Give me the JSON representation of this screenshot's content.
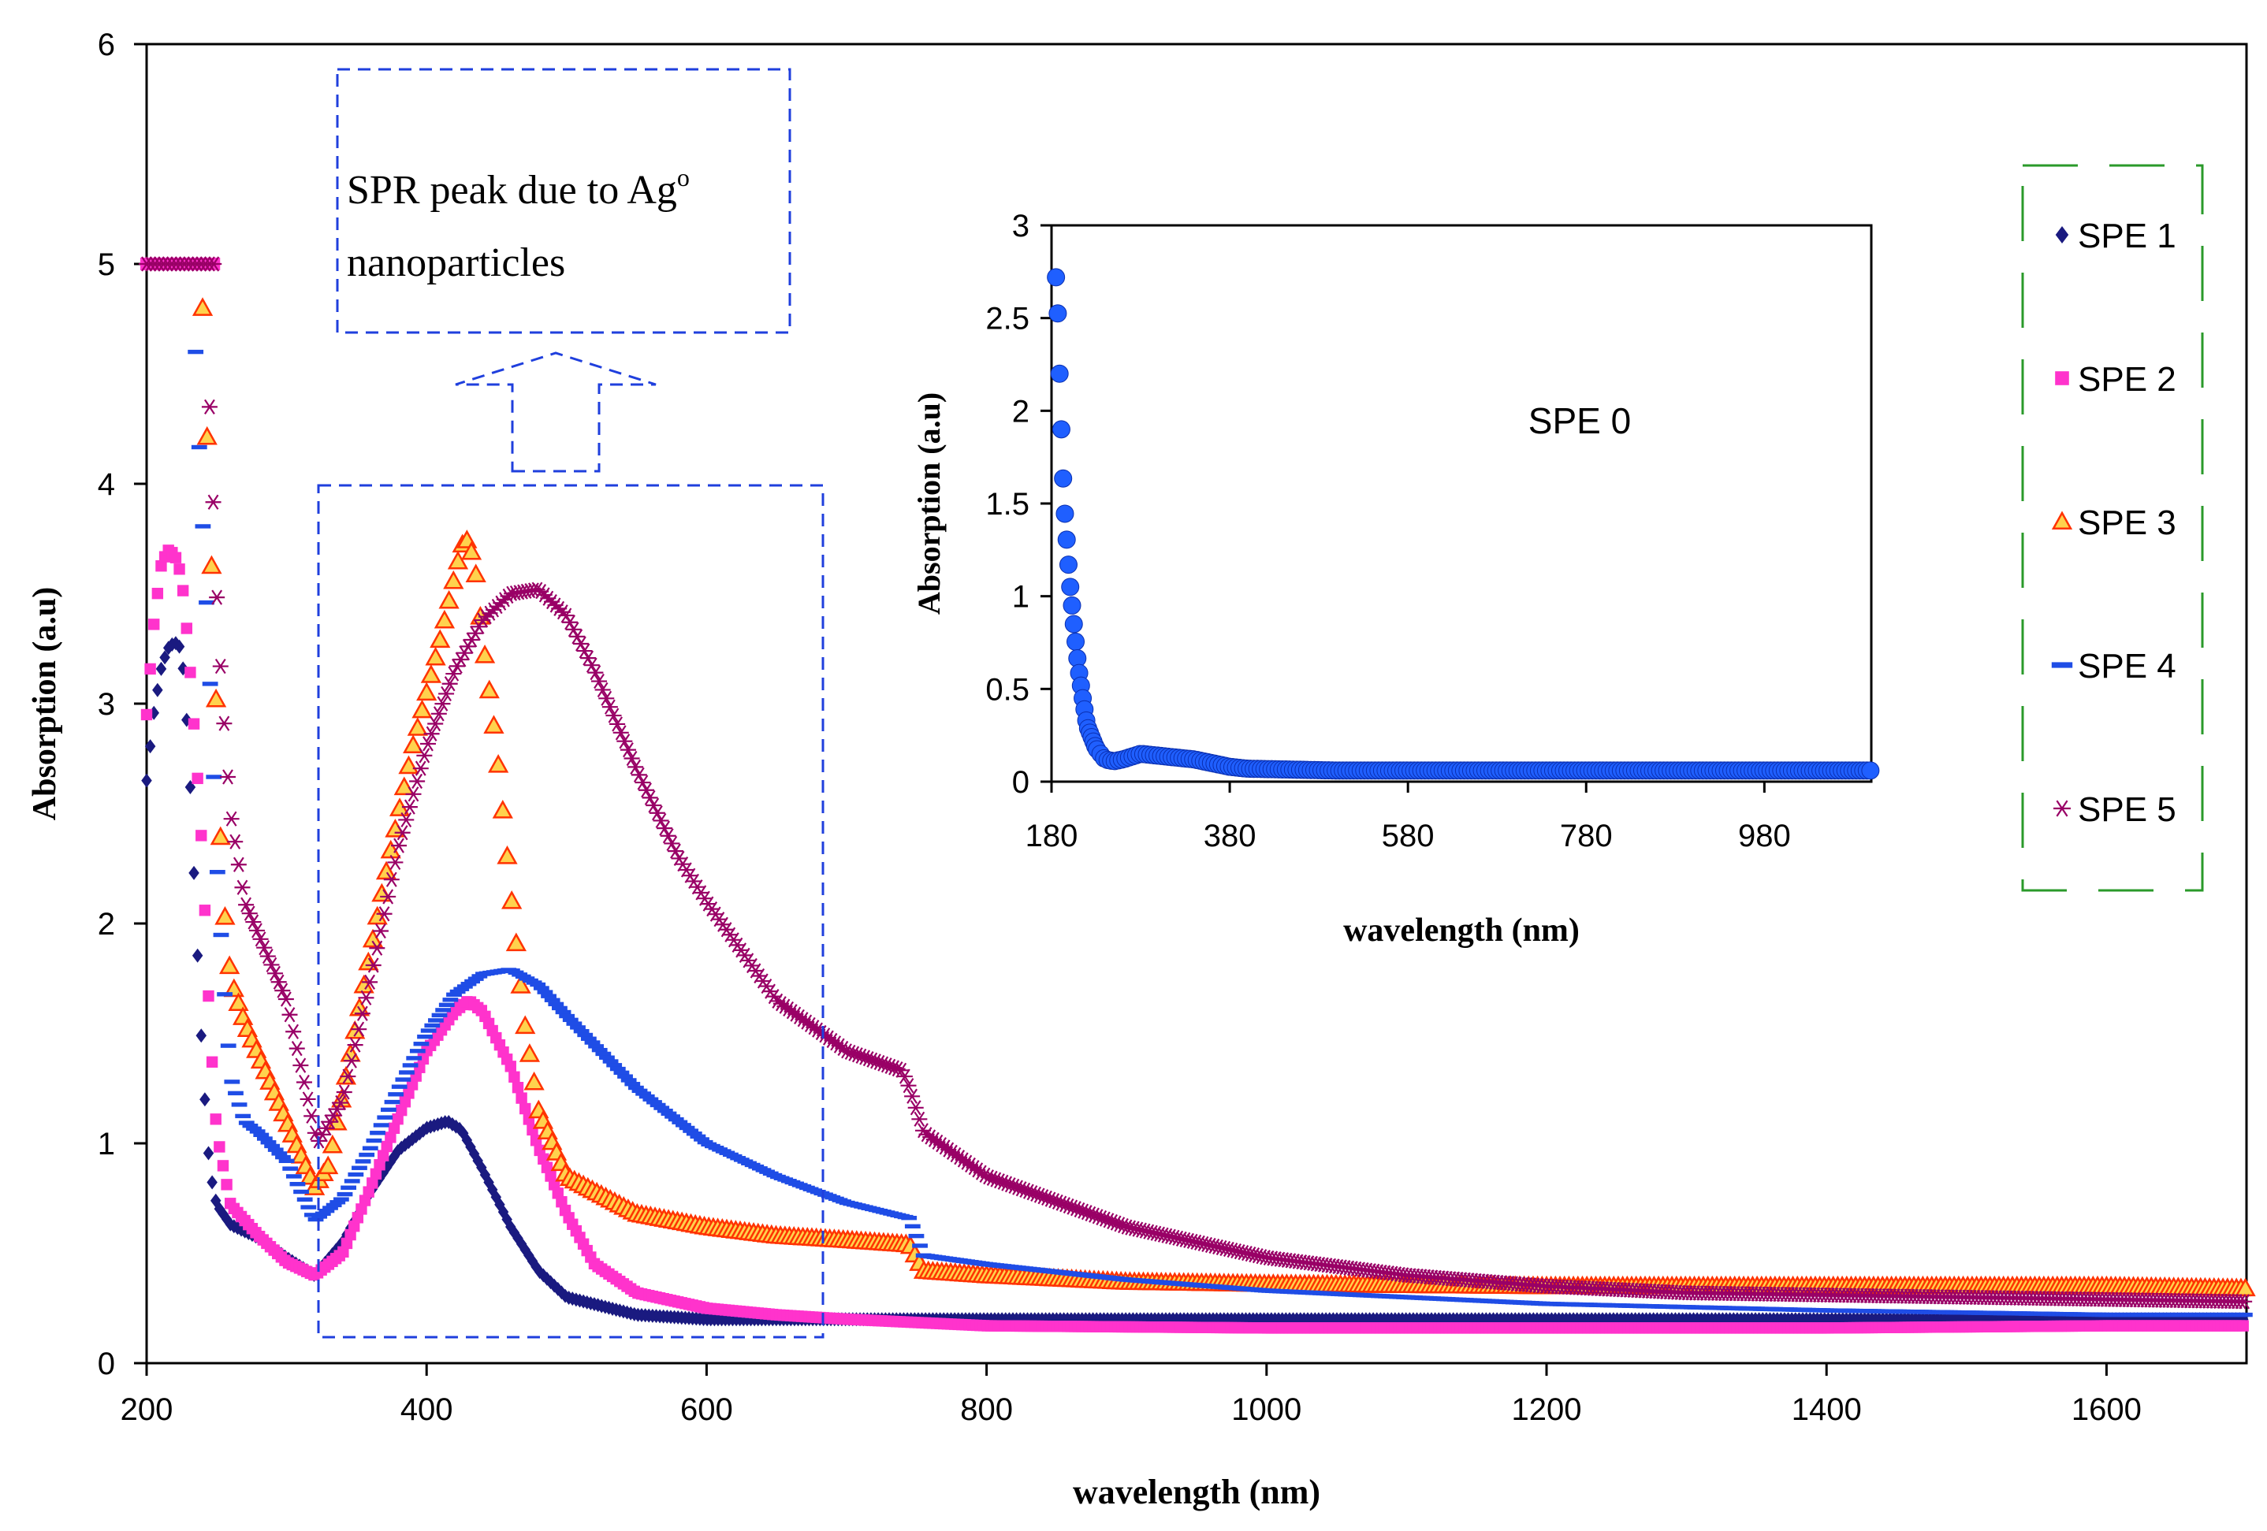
{
  "chart_data": [
    {
      "type": "scatter",
      "xlabel": "wavelength (nm)",
      "ylabel": "Absorption (a.u)",
      "xlim": [
        200,
        1700
      ],
      "ylim": [
        0,
        6
      ],
      "xticks": [
        "200",
        "400",
        "600",
        "800",
        "1000",
        "1200",
        "1400",
        "1600"
      ],
      "yticks": [
        "0",
        "1",
        "2",
        "3",
        "4",
        "5",
        "6"
      ],
      "grid": false,
      "legend_position": "right",
      "annotation": {
        "text_main": "SPR peak due to Ag",
        "text_sup": "o",
        "text_line2": "nanoparticles"
      },
      "series": [
        {
          "name": "SPE 1",
          "color": "#1a1a80",
          "marker": "diamond",
          "x": [
            200,
            205,
            210,
            215,
            220,
            225,
            230,
            235,
            240,
            245,
            250,
            260,
            280,
            300,
            320,
            340,
            360,
            380,
            400,
            415,
            425,
            440,
            460,
            480,
            500,
            550,
            600,
            650,
            700,
            750,
            800,
            1000,
            1200,
            1400,
            1600,
            1700
          ],
          "y": [
            2.65,
            2.95,
            3.15,
            3.25,
            3.28,
            3.25,
            2.8,
            2.05,
            1.35,
            0.88,
            0.72,
            0.63,
            0.57,
            0.48,
            0.4,
            0.55,
            0.78,
            0.97,
            1.07,
            1.1,
            1.06,
            0.88,
            0.62,
            0.42,
            0.3,
            0.22,
            0.2,
            0.2,
            0.2,
            0.2,
            0.2,
            0.2,
            0.2,
            0.2,
            0.2,
            0.2
          ]
        },
        {
          "name": "SPE 2",
          "color": "#ff33cc",
          "marker": "square",
          "x": [
            200,
            205,
            210,
            215,
            220,
            225,
            230,
            235,
            240,
            245,
            250,
            260,
            280,
            300,
            320,
            340,
            360,
            380,
            400,
            420,
            430,
            440,
            460,
            480,
            500,
            520,
            550,
            600,
            650,
            700,
            800,
            1000,
            1200,
            1400,
            1600,
            1700
          ],
          "y": [
            2.95,
            3.35,
            3.62,
            3.7,
            3.68,
            3.58,
            3.25,
            2.8,
            2.3,
            1.55,
            1.05,
            0.72,
            0.58,
            0.46,
            0.4,
            0.5,
            0.8,
            1.12,
            1.42,
            1.6,
            1.65,
            1.6,
            1.35,
            0.98,
            0.68,
            0.45,
            0.32,
            0.25,
            0.22,
            0.2,
            0.17,
            0.16,
            0.16,
            0.16,
            0.17,
            0.17
          ]
        },
        {
          "name": "SPE 3",
          "color": "#ff3300",
          "marker": "triangle",
          "x": [
            240,
            243,
            246,
            249,
            252,
            255,
            260,
            270,
            280,
            300,
            320,
            330,
            350,
            370,
            390,
            410,
            425,
            430,
            435,
            440,
            450,
            460,
            470,
            480,
            500,
            550,
            600,
            650,
            700,
            745,
            755,
            800,
            900,
            1000,
            1200,
            1400,
            1600,
            1700
          ],
          "y": [
            4.8,
            4.25,
            3.7,
            3.15,
            2.5,
            2.1,
            1.75,
            1.55,
            1.4,
            1.1,
            0.8,
            0.9,
            1.55,
            2.2,
            2.8,
            3.3,
            3.72,
            3.75,
            3.6,
            3.3,
            2.8,
            2.15,
            1.55,
            1.15,
            0.85,
            0.68,
            0.62,
            0.58,
            0.56,
            0.54,
            0.42,
            0.4,
            0.37,
            0.36,
            0.35,
            0.35,
            0.35,
            0.34
          ]
        },
        {
          "name": "SPE 4",
          "color": "#1f4de6",
          "marker": "dash",
          "x": [
            235,
            238,
            241,
            244,
            247,
            250,
            255,
            260,
            270,
            280,
            300,
            320,
            340,
            360,
            380,
            400,
            420,
            440,
            460,
            480,
            500,
            550,
            600,
            650,
            700,
            745,
            755,
            800,
            900,
            1000,
            1200,
            1400,
            1600,
            1700
          ],
          "y": [
            4.6,
            4.1,
            3.7,
            3.3,
            2.85,
            2.3,
            1.75,
            1.3,
            1.1,
            1.05,
            0.92,
            0.65,
            0.75,
            0.98,
            1.25,
            1.5,
            1.68,
            1.77,
            1.79,
            1.72,
            1.58,
            1.25,
            1.0,
            0.85,
            0.73,
            0.66,
            0.49,
            0.45,
            0.38,
            0.33,
            0.27,
            0.24,
            0.22,
            0.22
          ]
        },
        {
          "name": "SPE 5",
          "color": "#990066",
          "marker": "asterisk",
          "x": [
            245,
            248,
            251,
            254,
            257,
            260,
            265,
            270,
            280,
            300,
            322,
            340,
            360,
            380,
            400,
            420,
            440,
            460,
            480,
            500,
            520,
            550,
            580,
            600,
            650,
            700,
            740,
            745,
            755,
            800,
            900,
            1000,
            1100,
            1200,
            1300,
            1400,
            1500,
            1600,
            1700
          ],
          "y": [
            4.35,
            3.85,
            3.35,
            3.05,
            2.75,
            2.5,
            2.3,
            2.1,
            1.95,
            1.65,
            1.0,
            1.2,
            1.75,
            2.35,
            2.8,
            3.15,
            3.38,
            3.5,
            3.52,
            3.4,
            3.15,
            2.7,
            2.3,
            2.1,
            1.65,
            1.42,
            1.33,
            1.25,
            1.05,
            0.85,
            0.62,
            0.48,
            0.4,
            0.35,
            0.32,
            0.31,
            0.3,
            0.29,
            0.28
          ]
        }
      ],
      "saturation_caps": [
        {
          "series": "SPE 2",
          "y": 5.0,
          "x_from": 200,
          "x_to": 250
        },
        {
          "series": "SPE 5",
          "y": 5.0,
          "x_from": 200,
          "x_to": 250
        }
      ]
    },
    {
      "type": "scatter",
      "xlabel": "wavelength (nm)",
      "ylabel": "Absorption (a.u)",
      "xlim": [
        180,
        1100
      ],
      "ylim": [
        0,
        3
      ],
      "xticks": [
        "180",
        "380",
        "580",
        "780",
        "980"
      ],
      "yticks": [
        "0",
        "0.5",
        "1",
        "1.5",
        "2",
        "2.5",
        "3"
      ],
      "grid": false,
      "series": [
        {
          "name": "SPE 0",
          "color": "#1f5fff",
          "marker": "circle",
          "x": [
            185,
            186,
            188,
            190,
            192,
            194,
            196,
            198,
            200,
            203,
            206,
            210,
            215,
            220,
            230,
            240,
            250,
            260,
            280,
            300,
            320,
            340,
            360,
            380,
            400,
            500,
            600,
            700,
            800,
            900,
            1000,
            1100
          ],
          "y": [
            2.72,
            2.7,
            2.35,
            2.05,
            1.75,
            1.52,
            1.37,
            1.24,
            1.1,
            0.95,
            0.8,
            0.62,
            0.45,
            0.3,
            0.18,
            0.12,
            0.11,
            0.12,
            0.15,
            0.14,
            0.13,
            0.12,
            0.1,
            0.08,
            0.07,
            0.06,
            0.06,
            0.06,
            0.06,
            0.06,
            0.06,
            0.06
          ]
        }
      ]
    }
  ]
}
